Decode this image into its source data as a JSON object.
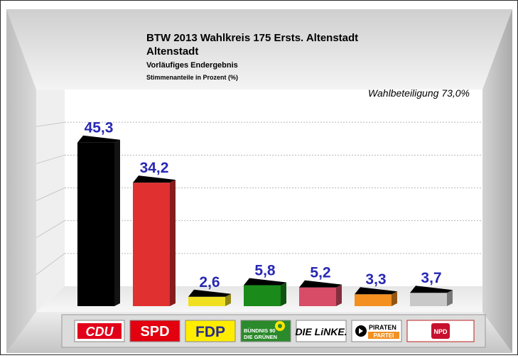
{
  "chart_data": {
    "type": "bar",
    "title": "BTW 2013 Wahlkreis 175 Ersts. Altenstadt",
    "subtitle": "Altenstadt",
    "subtitle2": "Vorläufiges Endergebnis",
    "subtitle3": "Stimmenanteile in Prozent (%)",
    "annotation": "Wahlbeteiligung 73,0%",
    "categories": [
      "CDU",
      "SPD",
      "FDP",
      "BÜNDNIS 90 DIE GRÜNEN",
      "DIE LINKE.",
      "PIRATEN PARTEI",
      "NPD"
    ],
    "values": [
      45.3,
      34.2,
      2.6,
      5.8,
      5.2,
      3.3,
      3.7
    ],
    "value_labels": [
      "45,3",
      "34,2",
      "2,6",
      "5,8",
      "5,2",
      "3,3",
      "3,7"
    ],
    "colors": [
      "#000000",
      "#e03030",
      "#f0e020",
      "#1a8a1a",
      "#d84c68",
      "#f39020",
      "#c8c8c8"
    ],
    "ylim": [
      0,
      60
    ],
    "grid": true,
    "legend": "logos-bottom"
  },
  "logos": {
    "cdu": "CDU",
    "spd": "SPD",
    "fdp": "FDP",
    "gruene_line1": "BÜNDNIS 90",
    "gruene_line2": "DIE GRÜNEN",
    "linke": "DIE LiNKE.",
    "piraten_line1": "PIRATEN",
    "piraten_line2": "PARTEI",
    "npd": "NPD"
  }
}
